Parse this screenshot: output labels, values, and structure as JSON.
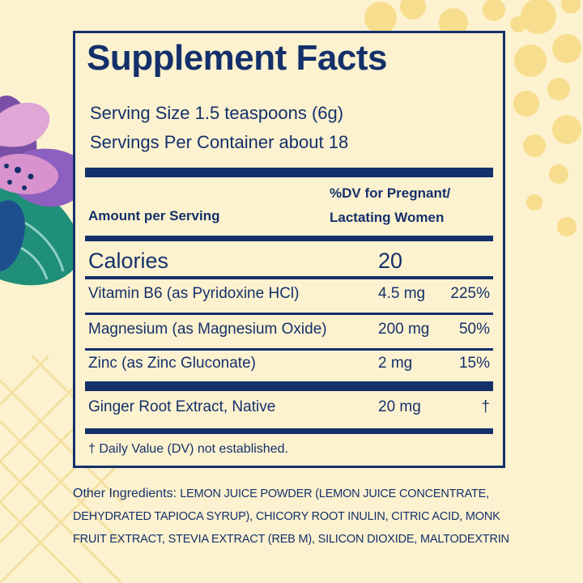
{
  "colors": {
    "background": "#fdf2cf",
    "navy": "#14306b",
    "dots": "#f7dd8e"
  },
  "title": "Supplement Facts",
  "serving_size": "Serving Size 1.5 teaspoons (6g)",
  "servings_per_container": "Servings Per Container about 18",
  "header": {
    "amount": "Amount per Serving",
    "dv_line1": "%DV for Pregnant/",
    "dv_line2": "Lactating Women"
  },
  "calories": {
    "label": "Calories",
    "value": "20"
  },
  "nutrients": [
    {
      "name": "Vitamin B6 (as Pyridoxine HCl)",
      "amount": "4.5 mg",
      "dv": "225%"
    },
    {
      "name": "Magnesium (as Magnesium Oxide)",
      "amount": "200 mg",
      "dv": "50%"
    },
    {
      "name": "Zinc (as Zinc Gluconate)",
      "amount": "2 mg",
      "dv": "15%"
    },
    {
      "name": "Ginger Root Extract, Native",
      "amount": "20 mg",
      "dv": "†"
    }
  ],
  "footnote": "† Daily Value (DV) not established.",
  "other_ingredients": {
    "label": "Other Ingredients:",
    "text": "LEMON JUICE POWDER (LEMON JUICE CONCENTRATE, DEHYDRATED TAPIOCA SYRUP), CHICORY ROOT INULIN, CITRIC ACID, MONK FRUIT EXTRACT, STEVIA EXTRACT (REB M), SILICON DIOXIDE, MALTODEXTRIN"
  }
}
